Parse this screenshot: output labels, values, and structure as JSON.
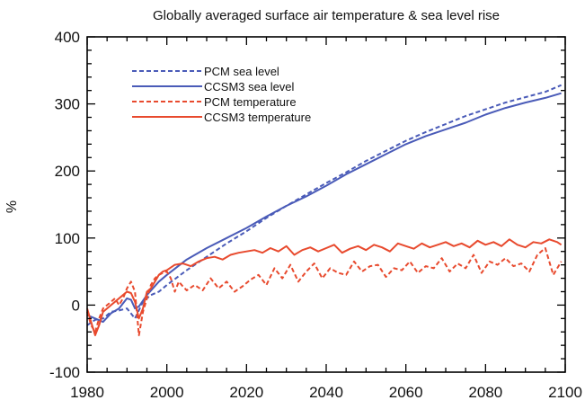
{
  "chart_data": {
    "type": "line",
    "title": "Globally averaged surface air temperature & sea level rise",
    "xlabel": "",
    "ylabel": "%",
    "xlim": [
      1980,
      2100
    ],
    "ylim": [
      -100,
      400
    ],
    "xticks": [
      1980,
      2000,
      2020,
      2040,
      2060,
      2080,
      2100
    ],
    "yticks": [
      -100,
      0,
      100,
      200,
      300,
      400
    ],
    "legend_position": "top-left",
    "grid": false,
    "series": [
      {
        "name": "PCM sea level",
        "color": "#4a5bb8",
        "style": "dashed",
        "x": [
          1980,
          1982,
          1984,
          1986,
          1988,
          1990,
          1992,
          1994,
          1996,
          1998,
          2000,
          2005,
          2010,
          2015,
          2020,
          2025,
          2030,
          2035,
          2040,
          2045,
          2050,
          2055,
          2060,
          2065,
          2070,
          2075,
          2080,
          2085,
          2090,
          2095,
          2099
        ],
        "y": [
          -30,
          -22,
          -20,
          -10,
          -8,
          -5,
          -20,
          5,
          15,
          20,
          30,
          52,
          72,
          92,
          110,
          130,
          148,
          165,
          182,
          198,
          215,
          230,
          245,
          258,
          270,
          282,
          292,
          302,
          310,
          318,
          328
        ]
      },
      {
        "name": "CCSM3 sea level",
        "color": "#4a5bb8",
        "style": "solid",
        "x": [
          1980,
          1982,
          1984,
          1986,
          1988,
          1990,
          1991,
          1992,
          1993,
          1995,
          1998,
          2000,
          2005,
          2010,
          2015,
          2020,
          2025,
          2030,
          2035,
          2040,
          2045,
          2050,
          2055,
          2060,
          2065,
          2070,
          2075,
          2080,
          2085,
          2090,
          2095,
          2099
        ],
        "y": [
          -15,
          -20,
          -25,
          -12,
          -5,
          10,
          8,
          -5,
          -2,
          15,
          35,
          45,
          68,
          85,
          100,
          115,
          132,
          148,
          162,
          178,
          195,
          210,
          225,
          240,
          252,
          262,
          272,
          284,
          294,
          302,
          309,
          316
        ]
      },
      {
        "name": "PCM temperature",
        "color": "#e84a2e",
        "style": "dashed",
        "x": [
          1980,
          1981,
          1982,
          1983,
          1984,
          1985,
          1986,
          1987,
          1988,
          1989,
          1990,
          1991,
          1992,
          1993,
          1994,
          1995,
          1996,
          1997,
          1998,
          1999,
          2000,
          2001,
          2002,
          2003,
          2004,
          2005,
          2007,
          2009,
          2011,
          2013,
          2015,
          2017,
          2019,
          2021,
          2023,
          2025,
          2027,
          2029,
          2031,
          2033,
          2035,
          2037,
          2039,
          2041,
          2043,
          2045,
          2047,
          2049,
          2051,
          2053,
          2055,
          2057,
          2059,
          2061,
          2063,
          2065,
          2067,
          2069,
          2071,
          2073,
          2075,
          2077,
          2079,
          2081,
          2083,
          2085,
          2087,
          2089,
          2091,
          2093,
          2095,
          2097,
          2099
        ],
        "y": [
          -10,
          -30,
          -40,
          -20,
          -5,
          0,
          5,
          10,
          0,
          10,
          25,
          35,
          20,
          -45,
          -10,
          10,
          30,
          40,
          45,
          48,
          50,
          40,
          20,
          35,
          28,
          22,
          30,
          22,
          40,
          25,
          35,
          20,
          28,
          38,
          45,
          30,
          55,
          40,
          60,
          35,
          50,
          62,
          40,
          55,
          48,
          45,
          65,
          50,
          58,
          60,
          42,
          55,
          52,
          65,
          48,
          58,
          55,
          70,
          50,
          62,
          55,
          75,
          48,
          65,
          60,
          70,
          58,
          62,
          50,
          75,
          85,
          45,
          65
        ],
        "labels": []
      },
      {
        "name": "CCSM3 temperature",
        "color": "#e84a2e",
        "style": "solid",
        "x": [
          1980,
          1981,
          1982,
          1983,
          1984,
          1985,
          1986,
          1987,
          1988,
          1989,
          1990,
          1991,
          1992,
          1993,
          1994,
          1995,
          1996,
          1997,
          1998,
          1999,
          2000,
          2002,
          2004,
          2006,
          2008,
          2010,
          2012,
          2014,
          2016,
          2018,
          2020,
          2022,
          2024,
          2026,
          2028,
          2030,
          2032,
          2034,
          2036,
          2038,
          2040,
          2042,
          2044,
          2046,
          2048,
          2050,
          2052,
          2054,
          2056,
          2058,
          2060,
          2062,
          2064,
          2066,
          2068,
          2070,
          2072,
          2074,
          2076,
          2078,
          2080,
          2082,
          2084,
          2086,
          2088,
          2090,
          2092,
          2094,
          2096,
          2098,
          2099
        ],
        "y": [
          -5,
          -25,
          -45,
          -30,
          -10,
          -5,
          0,
          5,
          10,
          15,
          20,
          18,
          5,
          -20,
          -5,
          20,
          25,
          35,
          45,
          50,
          52,
          60,
          62,
          58,
          65,
          70,
          72,
          68,
          75,
          78,
          80,
          82,
          78,
          85,
          80,
          88,
          75,
          82,
          86,
          80,
          85,
          90,
          78,
          84,
          88,
          82,
          90,
          86,
          80,
          92,
          88,
          84,
          92,
          86,
          90,
          94,
          88,
          92,
          86,
          96,
          90,
          94,
          88,
          98,
          90,
          86,
          94,
          92,
          98,
          94,
          90
        ]
      }
    ]
  }
}
